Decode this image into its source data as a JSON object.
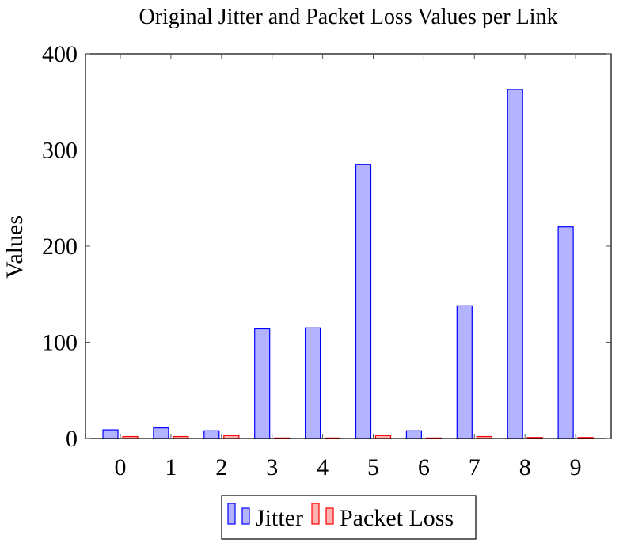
{
  "chart_data": {
    "type": "bar",
    "title": "Original Jitter and Packet Loss Values per Link",
    "xlabel": "",
    "ylabel": "Values",
    "categories": [
      "0",
      "1",
      "2",
      "3",
      "4",
      "5",
      "6",
      "7",
      "8",
      "9"
    ],
    "series": [
      {
        "name": "Jitter",
        "values": [
          9,
          11,
          8,
          114,
          115,
          285,
          8,
          138,
          363,
          220
        ],
        "fill": "#b3b3ff",
        "stroke": "#0000ff"
      },
      {
        "name": "Packet Loss",
        "values": [
          2,
          2,
          3,
          0,
          0,
          3,
          0,
          2,
          1,
          1
        ],
        "fill": "#ffb3b3",
        "stroke": "#ff0000"
      }
    ],
    "ylim": [
      0,
      400
    ],
    "yticks": [
      "0",
      "100",
      "200",
      "300",
      "400"
    ],
    "grid": false,
    "legend_position": "bottom-center"
  }
}
